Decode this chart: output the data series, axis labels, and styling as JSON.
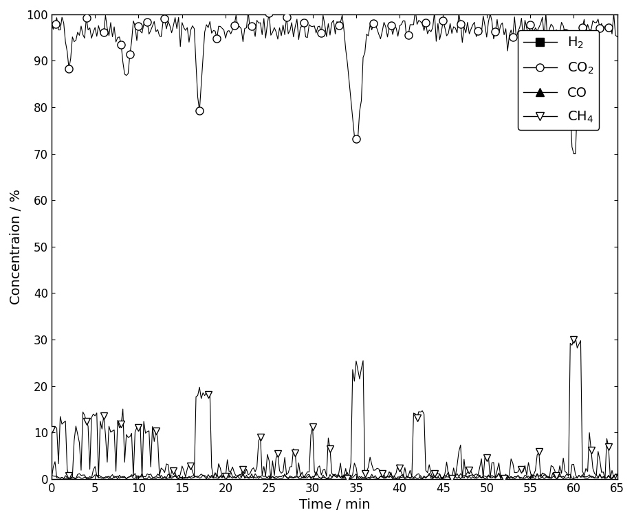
{
  "title": "",
  "xlabel": "Time / min",
  "ylabel": "Concentraion / %",
  "xlim": [
    0,
    65
  ],
  "ylim": [
    0,
    100
  ],
  "xticks": [
    0,
    5,
    10,
    15,
    20,
    25,
    30,
    35,
    40,
    45,
    50,
    55,
    60,
    65
  ],
  "yticks": [
    0,
    10,
    20,
    30,
    40,
    50,
    60,
    70,
    80,
    90,
    100
  ],
  "legend_labels": [
    "H$_2$",
    "CO$_2$",
    "CO",
    "CH$_4$"
  ],
  "legend_markers": [
    "s",
    "o",
    "^",
    "v"
  ],
  "legend_fillstyles": [
    "full",
    "none",
    "full",
    "none"
  ],
  "line_color": "black",
  "background_color": "#ffffff"
}
